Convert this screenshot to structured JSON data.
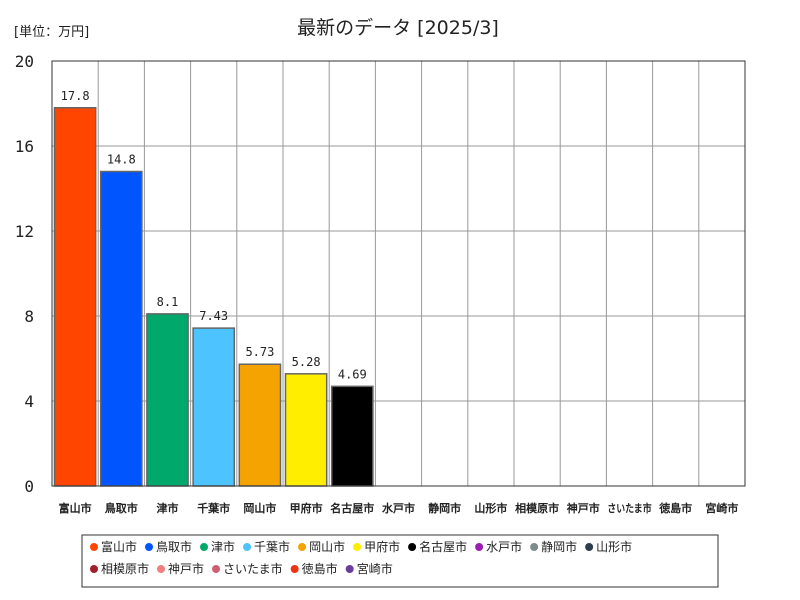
{
  "header": {
    "unit": "[単位：万円]",
    "title": "最新のデータ [2025/3]"
  },
  "chart_data": {
    "type": "bar",
    "title": "最新のデータ [2025/3]",
    "unit_label": "[単位：万円]",
    "ylim": [
      0,
      20
    ],
    "yticks": [
      0,
      4,
      8,
      12,
      16,
      20
    ],
    "grid": true,
    "legend_position": "bottom",
    "categories": [
      "富山市",
      "鳥取市",
      "津市",
      "千葉市",
      "岡山市",
      "甲府市",
      "名古屋市",
      "水戸市",
      "静岡市",
      "山形市",
      "相模原市",
      "神戸市",
      "さいたま市",
      "徳島市",
      "宮崎市"
    ],
    "values": [
      17.8,
      14.8,
      8.1,
      7.43,
      5.73,
      5.28,
      4.69,
      null,
      null,
      null,
      null,
      null,
      null,
      null,
      null
    ],
    "value_labels": [
      "17.8",
      "14.8",
      "8.1",
      "7.43",
      "5.73",
      "5.28",
      "4.69",
      "",
      "",
      "",
      "",
      "",
      "",
      "",
      ""
    ],
    "colors": [
      "#ff4500",
      "#0055ff",
      "#00a86b",
      "#4dc3ff",
      "#f5a300",
      "#ffee00",
      "#000000",
      "#9a1fb0",
      "#7f8c8d",
      "#2c3e50",
      "#a0202d",
      "#f08080",
      "#cd6070",
      "#ee3311",
      "#6a3d9a"
    ],
    "legend": [
      "富山市",
      "鳥取市",
      "津市",
      "千葉市",
      "岡山市",
      "甲府市",
      "名古屋市",
      "水戸市",
      "静岡市",
      "山形市",
      "相模原市",
      "神戸市",
      "さいたま市",
      "徳島市",
      "宮崎市"
    ]
  }
}
